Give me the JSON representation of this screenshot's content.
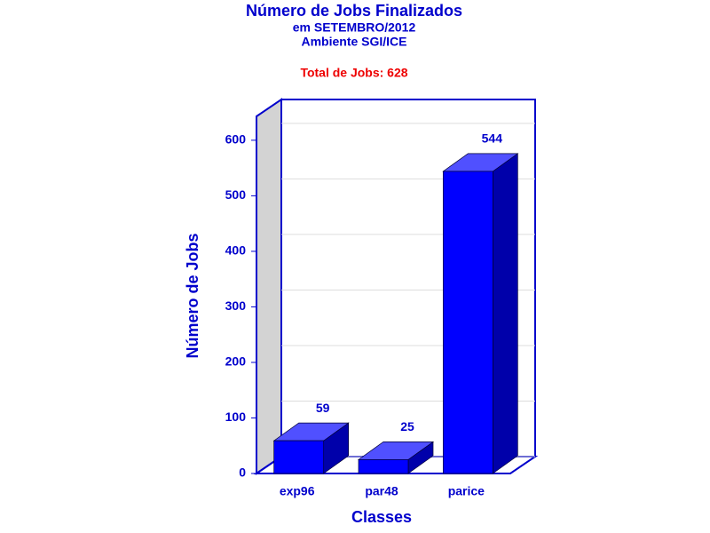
{
  "chart_data": {
    "type": "bar3d",
    "title": "Número de Jobs Finalizados",
    "subtitle": [
      "em SETEMBRO/2012",
      "Ambiente SGI/ICE"
    ],
    "annotation": "Total de Jobs: 628",
    "x_label": "Classes",
    "y_label": "Número de Jobs",
    "categories": [
      "exp96",
      "par48",
      "parice"
    ],
    "values": [
      59,
      25,
      544
    ],
    "color": "#0000ff",
    "ylim": [
      0,
      643
    ],
    "yticks": [
      0,
      100,
      200,
      300,
      400,
      500,
      600
    ],
    "grid": true
  }
}
